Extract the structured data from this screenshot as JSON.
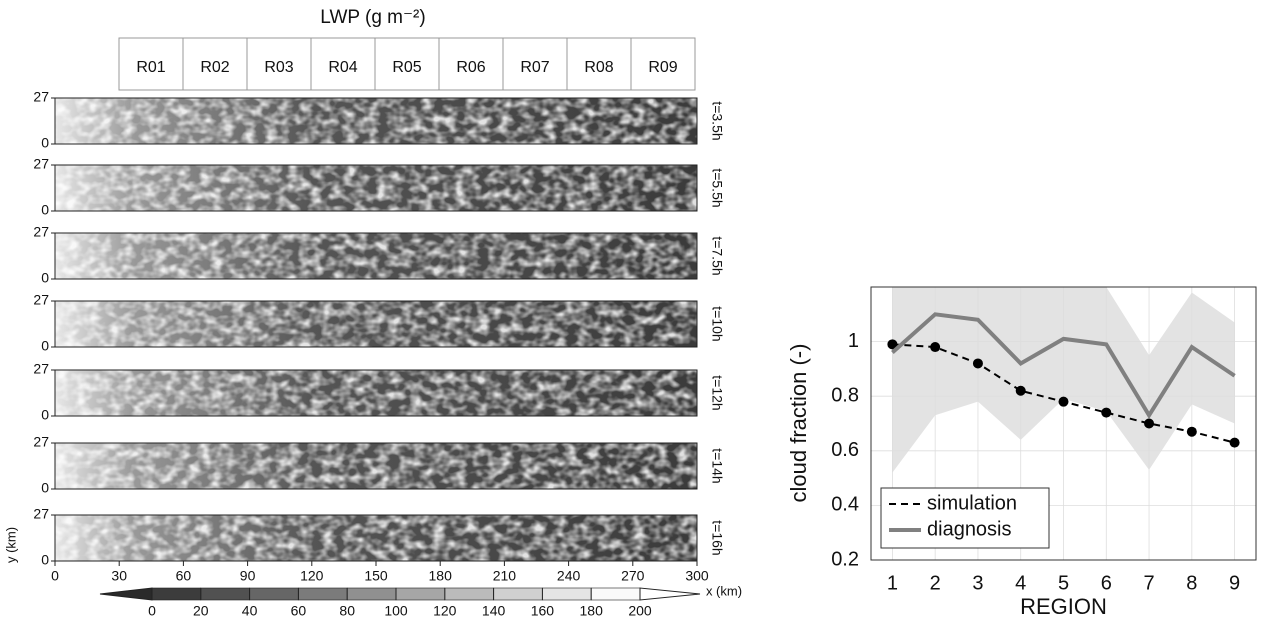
{
  "chart_data": [
    {
      "type": "strips",
      "title": "LWP (g m⁻²)",
      "regions": [
        "R01",
        "R02",
        "R03",
        "R04",
        "R05",
        "R06",
        "R07",
        "R08",
        "R09"
      ],
      "panels": [
        "t=3.5h",
        "t=5.5h",
        "t=7.5h",
        "t=10h",
        "t=12h",
        "t=14h",
        "t=16h"
      ],
      "ylim": [
        0,
        27
      ],
      "yticks": [
        0,
        27
      ],
      "ylabel": "y (km)",
      "xlim": [
        0,
        300
      ],
      "xticks": [
        0,
        30,
        60,
        90,
        120,
        150,
        180,
        210,
        240,
        270,
        300
      ],
      "xlabel": "x (km)",
      "colorbar_ticks": [
        0,
        20,
        40,
        60,
        80,
        100,
        120,
        140,
        160,
        180,
        200
      ]
    },
    {
      "type": "line",
      "xlabel": "REGION",
      "ylabel": "cloud fraction (-)",
      "x": [
        1,
        2,
        3,
        4,
        5,
        6,
        7,
        8,
        9
      ],
      "xlim": [
        0.5,
        9.5
      ],
      "xticks": [
        1,
        2,
        3,
        4,
        5,
        6,
        7,
        8,
        9
      ],
      "ylim": [
        0.2,
        1.2
      ],
      "yticks": [
        0.2,
        0.4,
        0.6,
        0.8,
        1
      ],
      "grid": true,
      "legend": "lower left",
      "band": {
        "color": "#e3e3e3",
        "upper": [
          1.2,
          1.2,
          1.2,
          1.2,
          1.2,
          1.2,
          0.95,
          1.18,
          1.07
        ],
        "lower": [
          0.52,
          0.73,
          0.78,
          0.64,
          0.79,
          0.745,
          0.53,
          0.77,
          0.7
        ]
      },
      "series": [
        {
          "name": "simulation",
          "color": "#000000",
          "dashed": true,
          "markers": true,
          "values": [
            0.99,
            0.98,
            0.92,
            0.82,
            0.78,
            0.74,
            0.7,
            0.67,
            0.63
          ]
        },
        {
          "name": "diagnosis",
          "color": "#808080",
          "dashed": false,
          "markers": false,
          "values": [
            0.96,
            1.1,
            1.08,
            0.92,
            1.01,
            0.99,
            0.73,
            0.98,
            0.875
          ]
        }
      ]
    }
  ]
}
